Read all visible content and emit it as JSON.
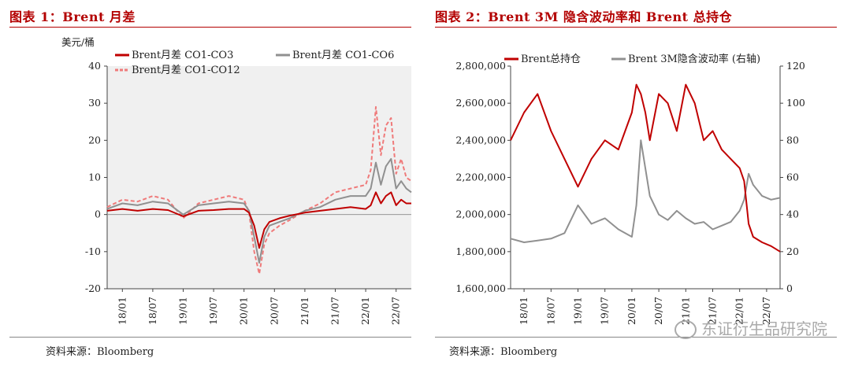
{
  "left": {
    "fig_title": "图表 1：Brent 月差",
    "unit": "美元/桶",
    "source": "资料来源：Bloomberg",
    "chart_data": {
      "type": "line",
      "ylim": [
        -20,
        40
      ],
      "yticks": [
        -20,
        -10,
        0,
        10,
        20,
        30,
        40
      ],
      "x_ticks": [
        "18/01",
        "18/07",
        "19/01",
        "19/07",
        "20/01",
        "20/07",
        "21/01",
        "21/07",
        "22/01",
        "22/07"
      ],
      "x_range": [
        "2017-10",
        "2022-10"
      ],
      "legend_position": "top",
      "series": [
        {
          "name": "Brent月差 CO1-CO3",
          "color": "#c00000",
          "dash": "",
          "x": [
            "2017-10",
            "2018-01",
            "2018-04",
            "2018-07",
            "2018-10",
            "2019-01",
            "2019-04",
            "2019-07",
            "2019-10",
            "2020-01",
            "2020-02",
            "2020-03",
            "2020-04",
            "2020-05",
            "2020-06",
            "2020-08",
            "2020-10",
            "2021-01",
            "2021-04",
            "2021-07",
            "2021-10",
            "2022-01",
            "2022-02",
            "2022-03",
            "2022-04",
            "2022-05",
            "2022-06",
            "2022-07",
            "2022-08",
            "2022-09",
            "2022-10"
          ],
          "values": [
            1.0,
            1.5,
            1.0,
            1.5,
            1.2,
            -0.5,
            1.0,
            1.2,
            1.5,
            1.5,
            0.5,
            -3.0,
            -9.0,
            -4.0,
            -2.0,
            -1.0,
            -0.3,
            0.5,
            1.0,
            1.5,
            2.0,
            1.5,
            2.5,
            6.0,
            3.0,
            5.0,
            6.0,
            2.5,
            4.0,
            3.0,
            3.0
          ]
        },
        {
          "name": "Brent月差 CO1-CO6",
          "color": "#909090",
          "dash": "",
          "x": [
            "2017-10",
            "2018-01",
            "2018-04",
            "2018-07",
            "2018-10",
            "2019-01",
            "2019-04",
            "2019-07",
            "2019-10",
            "2020-01",
            "2020-02",
            "2020-03",
            "2020-04",
            "2020-05",
            "2020-06",
            "2020-08",
            "2020-10",
            "2021-01",
            "2021-04",
            "2021-07",
            "2021-10",
            "2022-01",
            "2022-02",
            "2022-03",
            "2022-04",
            "2022-05",
            "2022-06",
            "2022-07",
            "2022-08",
            "2022-09",
            "2022-10"
          ],
          "values": [
            1.5,
            3.0,
            2.5,
            3.5,
            3.0,
            0.0,
            2.5,
            3.0,
            3.5,
            3.0,
            1.0,
            -6.0,
            -13.0,
            -6.0,
            -3.0,
            -2.0,
            -1.0,
            1.0,
            2.0,
            4.0,
            5.0,
            5.0,
            7.0,
            14.0,
            8.0,
            13.0,
            15.0,
            7.0,
            9.0,
            7.0,
            6.0
          ]
        },
        {
          "name": "Brent月差 CO1-CO12",
          "color": "#ef7a7a",
          "dash": "5,3",
          "x": [
            "2017-10",
            "2018-01",
            "2018-04",
            "2018-07",
            "2018-10",
            "2019-01",
            "2019-04",
            "2019-07",
            "2019-10",
            "2020-01",
            "2020-02",
            "2020-03",
            "2020-04",
            "2020-05",
            "2020-06",
            "2020-08",
            "2020-10",
            "2021-01",
            "2021-04",
            "2021-07",
            "2021-10",
            "2022-01",
            "2022-02",
            "2022-03",
            "2022-04",
            "2022-05",
            "2022-06",
            "2022-07",
            "2022-08",
            "2022-09",
            "2022-10"
          ],
          "values": [
            2.0,
            4.0,
            3.5,
            5.0,
            4.0,
            -1.0,
            3.0,
            4.0,
            5.0,
            4.0,
            0.5,
            -10.0,
            -16.0,
            -8.0,
            -5.0,
            -3.0,
            -1.5,
            1.0,
            3.0,
            6.0,
            7.0,
            8.0,
            12.0,
            29.0,
            16.0,
            24.0,
            26.0,
            11.0,
            15.0,
            10.0,
            9.0
          ]
        }
      ]
    }
  },
  "right": {
    "fig_title": "图表 2：Brent 3M 隐含波动率和 Brent 总持仓",
    "source": "资料来源：Bloomberg",
    "watermark": "东证衍生品研究院",
    "chart_data": {
      "type": "line",
      "ylim_left": [
        1600000,
        2800000
      ],
      "yticks_left": [
        "1,600,000",
        "1,800,000",
        "2,000,000",
        "2,200,000",
        "2,400,000",
        "2,600,000",
        "2,800,000"
      ],
      "ylim_right": [
        0,
        120
      ],
      "yticks_right": [
        0,
        20,
        40,
        60,
        80,
        100,
        120
      ],
      "x_ticks": [
        "18/01",
        "18/07",
        "19/01",
        "19/07",
        "20/01",
        "20/07",
        "21/01",
        "21/07",
        "22/01",
        "22/07"
      ],
      "x_range": [
        "2017-10",
        "2022-10"
      ],
      "legend_position": "top",
      "series": [
        {
          "name": "Brent总持仓",
          "color": "#c00000",
          "axis": "left",
          "x": [
            "2017-10",
            "2018-01",
            "2018-04",
            "2018-07",
            "2018-10",
            "2019-01",
            "2019-04",
            "2019-07",
            "2019-10",
            "2020-01",
            "2020-02",
            "2020-03",
            "2020-04",
            "2020-05",
            "2020-07",
            "2020-09",
            "2020-11",
            "2021-01",
            "2021-03",
            "2021-05",
            "2021-07",
            "2021-09",
            "2021-11",
            "2022-01",
            "2022-02",
            "2022-03",
            "2022-04",
            "2022-06",
            "2022-08",
            "2022-10"
          ],
          "values": [
            2400000,
            2550000,
            2650000,
            2450000,
            2300000,
            2150000,
            2300000,
            2400000,
            2350000,
            2550000,
            2700000,
            2650000,
            2550000,
            2400000,
            2650000,
            2600000,
            2450000,
            2700000,
            2600000,
            2400000,
            2450000,
            2350000,
            2300000,
            2250000,
            2180000,
            1950000,
            1880000,
            1850000,
            1830000,
            1800000
          ]
        },
        {
          "name": "Brent 3M隐含波动率 (右轴)",
          "color": "#909090",
          "axis": "right",
          "x": [
            "2017-10",
            "2018-01",
            "2018-04",
            "2018-07",
            "2018-10",
            "2019-01",
            "2019-04",
            "2019-07",
            "2019-10",
            "2020-01",
            "2020-02",
            "2020-03",
            "2020-04",
            "2020-05",
            "2020-07",
            "2020-09",
            "2020-11",
            "2021-01",
            "2021-03",
            "2021-05",
            "2021-07",
            "2021-09",
            "2021-11",
            "2022-01",
            "2022-02",
            "2022-03",
            "2022-04",
            "2022-06",
            "2022-08",
            "2022-10"
          ],
          "values": [
            27,
            25,
            26,
            27,
            30,
            45,
            35,
            38,
            32,
            28,
            45,
            80,
            65,
            50,
            40,
            37,
            42,
            38,
            35,
            36,
            32,
            34,
            36,
            42,
            48,
            62,
            56,
            50,
            48,
            49
          ]
        }
      ]
    }
  }
}
